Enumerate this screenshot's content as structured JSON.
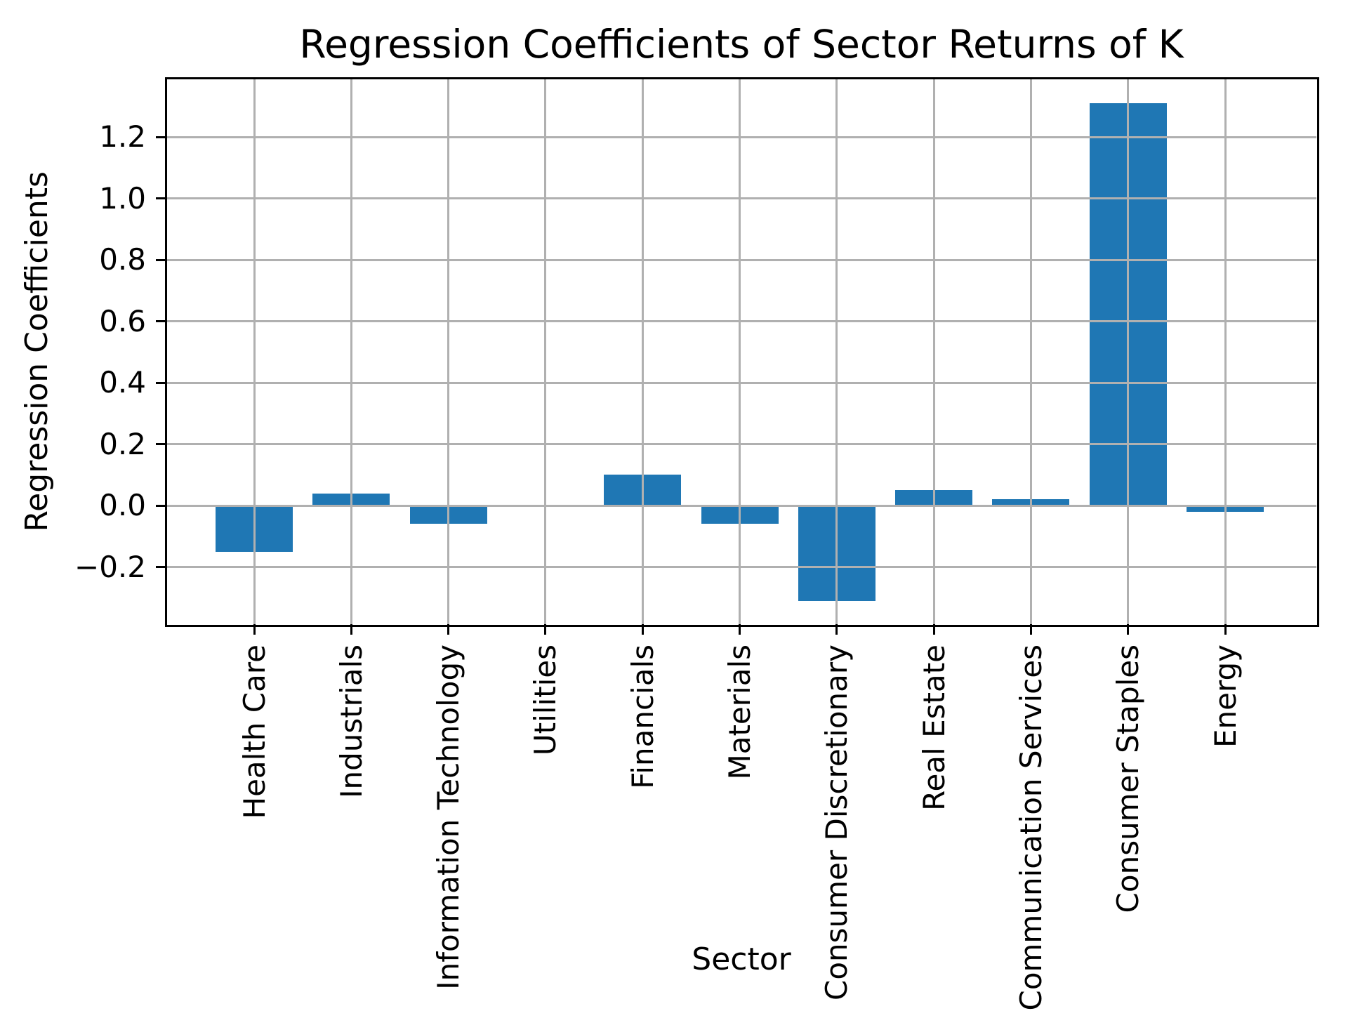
{
  "chart_data": {
    "type": "bar",
    "title": "Regression Coefficients of Sector Returns of K",
    "xlabel": "Sector",
    "ylabel": "Regression Coefficients",
    "categories": [
      "Health Care",
      "Industrials",
      "Information Technology",
      "Utilities",
      "Financials",
      "Materials",
      "Consumer Discretionary",
      "Real Estate",
      "Communication Services",
      "Consumer Staples",
      "Energy"
    ],
    "values": [
      -0.15,
      0.04,
      -0.06,
      0.0,
      0.1,
      -0.06,
      -0.31,
      0.05,
      0.02,
      1.31,
      -0.02
    ],
    "ylim": [
      -0.386,
      1.39
    ],
    "yticks": [
      1.2,
      1.0,
      0.8,
      0.6,
      0.4,
      0.2,
      0.0,
      -0.2
    ],
    "ytick_labels": [
      "1.2",
      "1.0",
      "0.8",
      "0.6",
      "0.4",
      "0.2",
      "0.0",
      "−0.2"
    ],
    "grid": true,
    "legend": "none",
    "bar_color": "#1f77b4",
    "grid_color": "#b0b0b0",
    "spine_color": "#000000"
  }
}
